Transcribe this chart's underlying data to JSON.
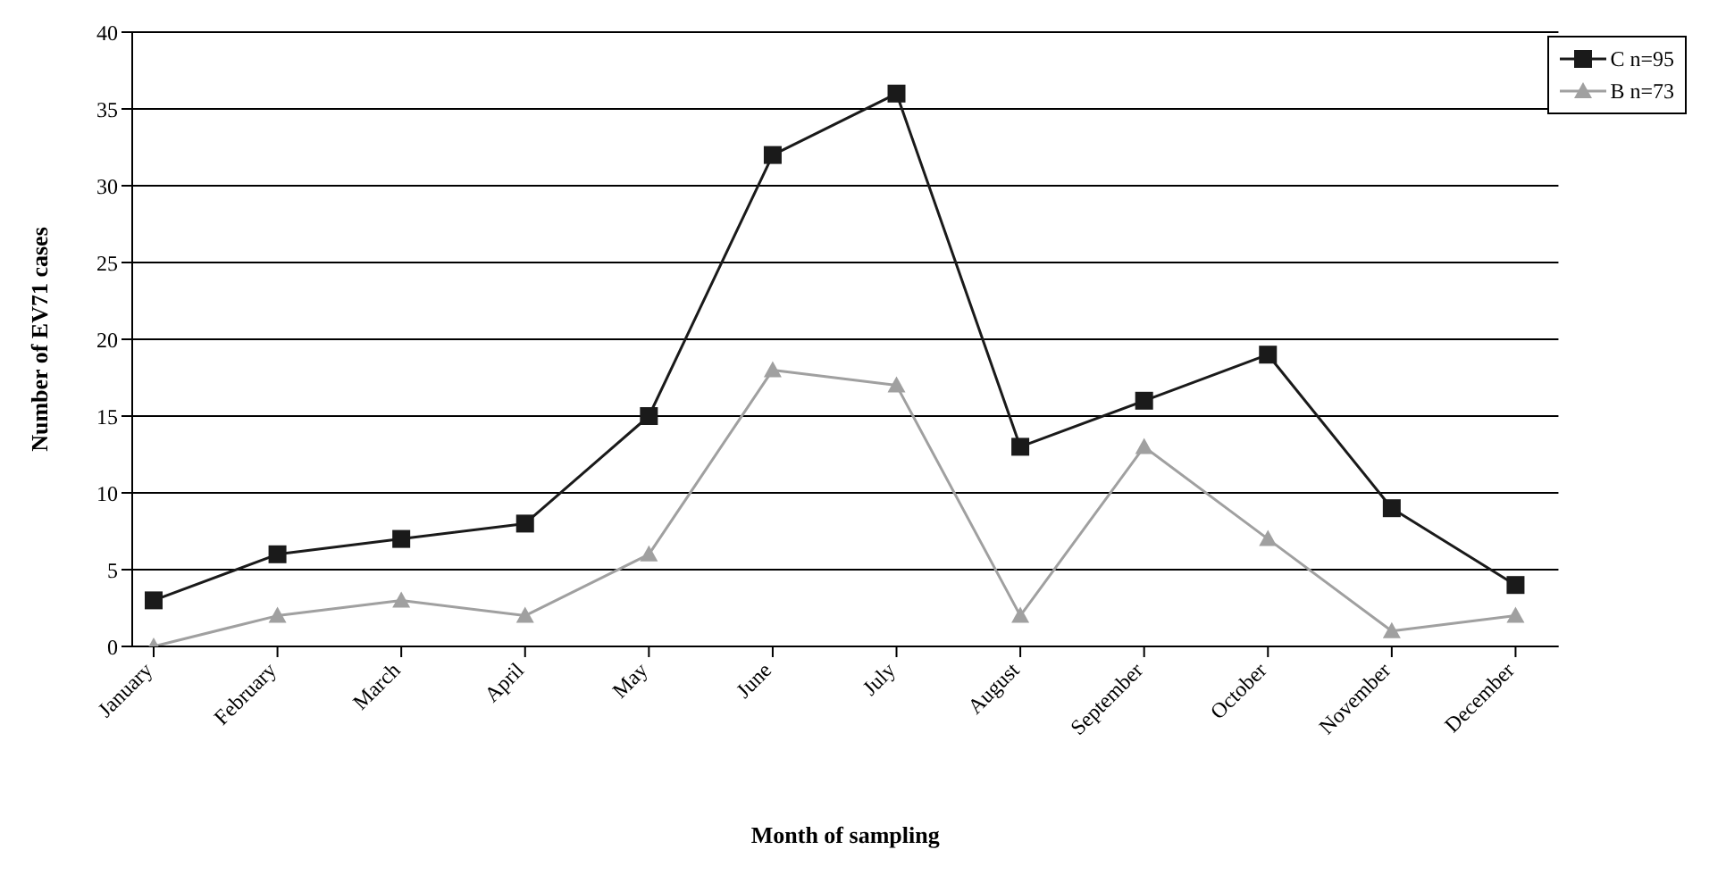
{
  "chart_data": {
    "type": "line",
    "xlabel": "Month of sampling",
    "ylabel": "Number of EV71 cases",
    "categories": [
      "January",
      "February",
      "March",
      "April",
      "May",
      "June",
      "July",
      "August",
      "September",
      "October",
      "November",
      "December"
    ],
    "series": [
      {
        "name": "C n=95",
        "color": "#1a1a1a",
        "marker": "square",
        "values": [
          3,
          6,
          7,
          8,
          15,
          32,
          36,
          13,
          16,
          19,
          9,
          4
        ]
      },
      {
        "name": "B n=73",
        "color": "#a0a0a0",
        "marker": "triangle",
        "values": [
          0,
          2,
          3,
          2,
          6,
          18,
          17,
          2,
          13,
          7,
          1,
          2
        ]
      }
    ],
    "ylim": [
      0,
      40
    ],
    "yticks": [
      0,
      5,
      10,
      15,
      20,
      25,
      30,
      35,
      40
    ],
    "grid": "y",
    "legend": "top right",
    "line_style": "solid"
  }
}
